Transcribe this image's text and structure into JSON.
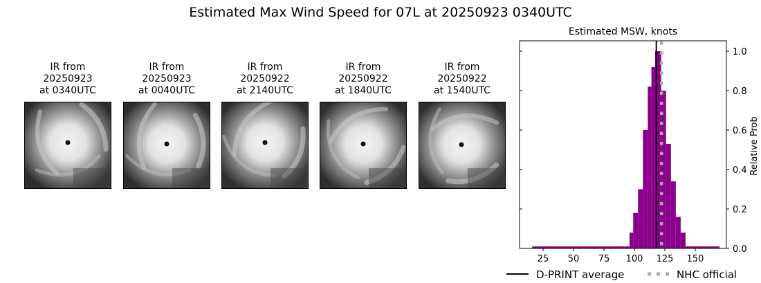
{
  "title": "Estimated Max Wind Speed for 07L at 20250923 0340UTC",
  "ir_panels": [
    {
      "line1": "IR from",
      "line2": "20250923",
      "line3": "at 0340UTC",
      "eye_x": 62,
      "eye_y": 58,
      "swirl": 0
    },
    {
      "line1": "IR from",
      "line2": "20250923",
      "line3": "at 0040UTC",
      "eye_x": 62,
      "eye_y": 60,
      "swirl": 1
    },
    {
      "line1": "IR from",
      "line2": "20250922",
      "line3": "at 2140UTC",
      "eye_x": 62,
      "eye_y": 58,
      "swirl": 2
    },
    {
      "line1": "IR from",
      "line2": "20250922",
      "line3": "at 1840UTC",
      "eye_x": 62,
      "eye_y": 60,
      "swirl": 3
    },
    {
      "line1": "IR from",
      "line2": "20250922",
      "line3": "at 1540UTC",
      "eye_x": 61,
      "eye_y": 61,
      "swirl": 4
    }
  ],
  "chart_data": {
    "type": "bar",
    "title": "Estimated MSW, knots",
    "xlabel": "",
    "ylabel": "Relative Prob",
    "xlim": [
      6,
      175
    ],
    "ylim": [
      0,
      1.05
    ],
    "xticks": [
      25,
      50,
      75,
      100,
      125,
      150
    ],
    "yticks": [
      0.0,
      0.2,
      0.4,
      0.6,
      0.8,
      1.0
    ],
    "ytick_labels": [
      "0.0",
      "0.2",
      "0.4",
      "0.6",
      "0.8",
      "1.0"
    ],
    "y_axis_side": "right",
    "bar_color": "#8b008b",
    "bins": [
      {
        "x0": 16,
        "x1": 96,
        "value": 0.01
      },
      {
        "x0": 96,
        "x1": 99,
        "value": 0.08
      },
      {
        "x0": 99,
        "x1": 103,
        "value": 0.18
      },
      {
        "x0": 103,
        "x1": 107,
        "value": 0.3
      },
      {
        "x0": 107,
        "x1": 111,
        "value": 0.6
      },
      {
        "x0": 111,
        "x1": 114,
        "value": 0.82
      },
      {
        "x0": 114,
        "x1": 117,
        "value": 0.92
      },
      {
        "x0": 117,
        "x1": 122,
        "value": 1.0
      },
      {
        "x0": 122,
        "x1": 126,
        "value": 0.8
      },
      {
        "x0": 126,
        "x1": 130,
        "value": 0.53
      },
      {
        "x0": 130,
        "x1": 134,
        "value": 0.34
      },
      {
        "x0": 134,
        "x1": 138,
        "value": 0.16
      },
      {
        "x0": 138,
        "x1": 142,
        "value": 0.08
      },
      {
        "x0": 142,
        "x1": 170,
        "value": 0.01
      }
    ],
    "lines": [
      {
        "name": "D-PRINT average",
        "x": 118,
        "style": "solid",
        "color": "#000000"
      },
      {
        "name": "NHC official",
        "x": 120,
        "style": "dotted",
        "color": "#aaaaaa"
      }
    ],
    "legend": [
      "D-PRINT average",
      "NHC official"
    ],
    "legend_position": "below",
    "grid": false
  }
}
